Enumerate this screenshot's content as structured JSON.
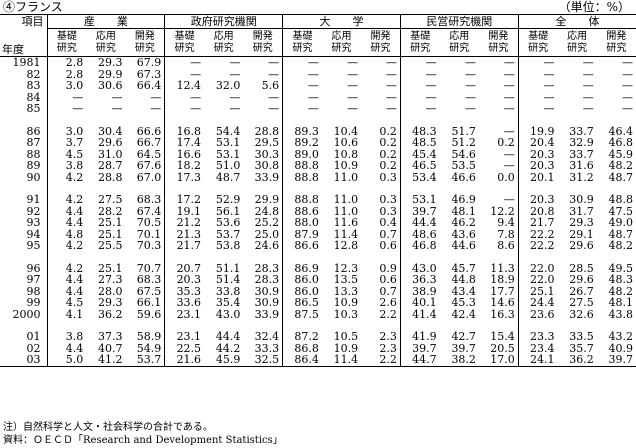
{
  "title": "④フランス",
  "unit": "（単位：%）",
  "header": {
    "item_label": "項目",
    "year_label": "年度",
    "groups": [
      "産　　業",
      "政府研究機関",
      "大　　学",
      "民営研究機関",
      "全　　体"
    ],
    "sub_basic": [
      "基礎",
      "研究"
    ],
    "sub_applied": [
      "応用",
      "研究"
    ],
    "sub_dev": [
      "開発",
      "研究"
    ]
  },
  "rows": [
    {
      "year": "1981",
      "v": [
        "2.8",
        "29.3",
        "67.9",
        "—",
        "—",
        "—",
        "—",
        "—",
        "—",
        "—",
        "—",
        "—",
        "—",
        "—",
        "—"
      ]
    },
    {
      "year": "82",
      "v": [
        "2.8",
        "29.9",
        "67.3",
        "—",
        "—",
        "—",
        "—",
        "—",
        "—",
        "—",
        "—",
        "—",
        "—",
        "—",
        "—"
      ]
    },
    {
      "year": "83",
      "v": [
        "3.0",
        "30.6",
        "66.4",
        "12.4",
        "32.0",
        "5.6",
        "—",
        "—",
        "—",
        "—",
        "—",
        "—",
        "—",
        "—",
        "—"
      ]
    },
    {
      "year": "84",
      "v": [
        "—",
        "—",
        "—",
        "—",
        "—",
        "—",
        "—",
        "—",
        "—",
        "—",
        "—",
        "—",
        "—",
        "—",
        "—"
      ]
    },
    {
      "year": "85",
      "v": [
        "—",
        "—",
        "—",
        "—",
        "—",
        "—",
        "—",
        "—",
        "—",
        "—",
        "—",
        "—",
        "—",
        "—",
        "—"
      ]
    },
    {
      "gap": true
    },
    {
      "year": "86",
      "v": [
        "3.0",
        "30.4",
        "66.6",
        "16.8",
        "54.4",
        "28.8",
        "89.3",
        "10.4",
        "0.2",
        "48.3",
        "51.7",
        "—",
        "19.9",
        "33.7",
        "46.4"
      ]
    },
    {
      "year": "87",
      "v": [
        "3.7",
        "29.6",
        "66.7",
        "17.4",
        "53.1",
        "29.5",
        "89.2",
        "10.6",
        "0.2",
        "48.5",
        "51.2",
        "0.2",
        "20.4",
        "32.9",
        "46.8"
      ]
    },
    {
      "year": "88",
      "v": [
        "4.5",
        "31.0",
        "64.5",
        "16.6",
        "53.1",
        "30.3",
        "89.0",
        "10.8",
        "0.2",
        "45.4",
        "54.6",
        "—",
        "20.3",
        "33.7",
        "45.9"
      ]
    },
    {
      "year": "89",
      "v": [
        "3.8",
        "28.7",
        "67.6",
        "18.2",
        "51.0",
        "30.8",
        "88.8",
        "10.9",
        "0.2",
        "46.5",
        "53.5",
        "—",
        "20.3",
        "31.6",
        "48.2"
      ]
    },
    {
      "year": "90",
      "v": [
        "4.2",
        "28.8",
        "67.0",
        "17.3",
        "48.7",
        "33.9",
        "88.8",
        "11.0",
        "0.3",
        "53.4",
        "46.6",
        "0.0",
        "20.1",
        "31.2",
        "48.7"
      ]
    },
    {
      "gap": true
    },
    {
      "year": "91",
      "v": [
        "4.2",
        "27.5",
        "68.3",
        "17.2",
        "52.9",
        "29.9",
        "88.8",
        "11.0",
        "0.3",
        "53.1",
        "46.9",
        "—",
        "20.3",
        "30.9",
        "48.8"
      ]
    },
    {
      "year": "92",
      "v": [
        "4.4",
        "28.2",
        "67.4",
        "19.1",
        "56.1",
        "24.8",
        "88.6",
        "11.0",
        "0.3",
        "39.7",
        "48.1",
        "12.2",
        "20.8",
        "31.7",
        "47.5"
      ]
    },
    {
      "year": "93",
      "v": [
        "4.4",
        "25.1",
        "70.5",
        "21.2",
        "53.6",
        "25.2",
        "88.0",
        "11.6",
        "0.4",
        "44.4",
        "46.2",
        "9.4",
        "21.7",
        "29.3",
        "49.0"
      ]
    },
    {
      "year": "94",
      "v": [
        "4.8",
        "25.1",
        "70.1",
        "21.3",
        "53.7",
        "25.0",
        "87.9",
        "11.4",
        "0.7",
        "48.6",
        "43.6",
        "7.8",
        "22.2",
        "29.1",
        "48.7"
      ]
    },
    {
      "year": "95",
      "v": [
        "4.2",
        "25.5",
        "70.3",
        "21.7",
        "53.8",
        "24.6",
        "86.6",
        "12.8",
        "0.6",
        "46.8",
        "44.6",
        "8.6",
        "22.2",
        "29.6",
        "48.2"
      ]
    },
    {
      "gap": true
    },
    {
      "year": "96",
      "v": [
        "4.2",
        "25.1",
        "70.7",
        "20.7",
        "51.1",
        "28.3",
        "86.9",
        "12.3",
        "0.9",
        "43.0",
        "45.7",
        "11.3",
        "22.0",
        "28.5",
        "49.5"
      ]
    },
    {
      "year": "97",
      "v": [
        "4.4",
        "27.3",
        "68.3",
        "20.3",
        "51.4",
        "28.3",
        "86.0",
        "13.5",
        "0.6",
        "36.3",
        "44.8",
        "18.9",
        "22.0",
        "29.6",
        "48.3"
      ]
    },
    {
      "year": "98",
      "v": [
        "4.4",
        "28.0",
        "67.5",
        "35.3",
        "33.8",
        "30.9",
        "86.0",
        "13.3",
        "0.7",
        "38.9",
        "43.4",
        "17.7",
        "25.1",
        "26.7",
        "48.2"
      ]
    },
    {
      "year": "99",
      "v": [
        "4.5",
        "29.3",
        "66.1",
        "33.6",
        "35.4",
        "30.9",
        "86.5",
        "10.9",
        "2.6",
        "40.1",
        "45.3",
        "14.6",
        "24.4",
        "27.5",
        "48.1"
      ]
    },
    {
      "year": "2000",
      "v": [
        "4.1",
        "36.2",
        "59.6",
        "23.1",
        "43.0",
        "33.9",
        "87.5",
        "10.3",
        "2.2",
        "41.4",
        "42.4",
        "16.3",
        "23.6",
        "32.6",
        "43.8"
      ]
    },
    {
      "gap": true
    },
    {
      "year": "01",
      "v": [
        "3.8",
        "37.3",
        "58.9",
        "23.1",
        "44.4",
        "32.4",
        "87.2",
        "10.5",
        "2.3",
        "41.9",
        "42.7",
        "15.4",
        "23.3",
        "33.5",
        "43.2"
      ]
    },
    {
      "year": "02",
      "v": [
        "4.4",
        "40.7",
        "54.9",
        "22.5",
        "44.2",
        "33.3",
        "86.8",
        "10.9",
        "2.3",
        "39.7",
        "39.7",
        "20.5",
        "23.4",
        "35.7",
        "40.9"
      ]
    },
    {
      "year": "03",
      "v": [
        "5.0",
        "41.2",
        "53.7",
        "21.6",
        "45.9",
        "32.5",
        "86.4",
        "11.4",
        "2.2",
        "44.7",
        "38.2",
        "17.0",
        "24.1",
        "36.2",
        "39.7"
      ]
    }
  ],
  "notes": [
    "注）自然科学と人文・社会科学の合計である。",
    "資料：ＯＥＣＤ「Research and Development Statistics」"
  ]
}
